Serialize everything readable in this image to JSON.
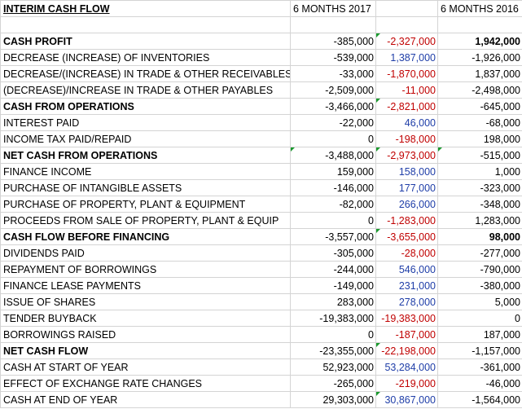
{
  "header": {
    "title": "INTERIM CASH FLOW",
    "col_2017": "6 MONTHS 2017",
    "col_extra": "",
    "col_2016": "6 MONTHS 2016"
  },
  "rows": [
    {
      "label": "CASH PROFIT",
      "v2017": "-385,000",
      "vmid": "-2,327,000",
      "v2016": "1,942,000"
    },
    {
      "label": "DECREASE (INCREASE) OF INVENTORIES",
      "v2017": "-539,000",
      "vmid": "1,387,000",
      "v2016": "-1,926,000"
    },
    {
      "label": "DECREASE/(INCREASE) IN TRADE & OTHER RECEIVABLES",
      "v2017": "-33,000",
      "vmid": "-1,870,000",
      "v2016": "1,837,000"
    },
    {
      "label": "(DECREASE)/INCREASE IN TRADE & OTHER PAYABLES",
      "v2017": "-2,509,000",
      "vmid": "-11,000",
      "v2016": "-2,498,000"
    },
    {
      "label": "CASH FROM OPERATIONS",
      "v2017": "-3,466,000",
      "vmid": "-2,821,000",
      "v2016": "-645,000"
    },
    {
      "label": "INTEREST PAID",
      "v2017": "-22,000",
      "vmid": "46,000",
      "v2016": "-68,000"
    },
    {
      "label": "INCOME TAX PAID/REPAID",
      "v2017": "0",
      "vmid": "-198,000",
      "v2016": "198,000"
    },
    {
      "label": "NET CASH FROM OPERATIONS",
      "v2017": "-3,488,000",
      "vmid": "-2,973,000",
      "v2016": "-515,000"
    },
    {
      "label": "FINANCE INCOME",
      "v2017": "159,000",
      "vmid": "158,000",
      "v2016": "1,000"
    },
    {
      "label": "PURCHASE OF INTANGIBLE ASSETS",
      "v2017": "-146,000",
      "vmid": "177,000",
      "v2016": "-323,000"
    },
    {
      "label": "PURCHASE OF PROPERTY, PLANT & EQUIPMENT",
      "v2017": "-82,000",
      "vmid": "266,000",
      "v2016": "-348,000"
    },
    {
      "label": "PROCEEDS FROM SALE OF PROPERTY, PLANT & EQUIP",
      "v2017": "0",
      "vmid": "-1,283,000",
      "v2016": "1,283,000"
    },
    {
      "label": "CASH FLOW BEFORE FINANCING",
      "v2017": "-3,557,000",
      "vmid": "-3,655,000",
      "v2016": "98,000"
    },
    {
      "label": "DIVIDENDS PAID",
      "v2017": "-305,000",
      "vmid": "-28,000",
      "v2016": "-277,000"
    },
    {
      "label": "REPAYMENT OF BORROWINGS",
      "v2017": "-244,000",
      "vmid": "546,000",
      "v2016": "-790,000"
    },
    {
      "label": "FINANCE LEASE PAYMENTS",
      "v2017": "-149,000",
      "vmid": "231,000",
      "v2016": "-380,000"
    },
    {
      "label": "ISSUE OF SHARES",
      "v2017": "283,000",
      "vmid": "278,000",
      "v2016": "5,000"
    },
    {
      "label": "TENDER BUYBACK",
      "v2017": "-19,383,000",
      "vmid": "-19,383,000",
      "v2016": "0"
    },
    {
      "label": "BORROWINGS RAISED",
      "v2017": "0",
      "vmid": "-187,000",
      "v2016": "187,000"
    },
    {
      "label": "NET CASH FLOW",
      "v2017": "-23,355,000",
      "vmid": "-22,198,000",
      "v2016": "-1,157,000"
    },
    {
      "label": "CASH AT START OF YEAR",
      "v2017": "52,923,000",
      "vmid": "53,284,000",
      "v2016": "-361,000"
    },
    {
      "label": "EFFECT OF EXCHANGE RATE CHANGES",
      "v2017": "-265,000",
      "vmid": "-219,000",
      "v2016": "-46,000"
    },
    {
      "label": "CASH AT END OF YEAR",
      "v2017": "29,303,000",
      "vmid": "30,867,000",
      "v2016": "-1,564,000"
    }
  ],
  "colors": {
    "negative_diff": "#c00000",
    "positive_diff": "#1f3ea8",
    "error_indicator": "#1a9a2e",
    "gridline": "#d4d4d4"
  }
}
